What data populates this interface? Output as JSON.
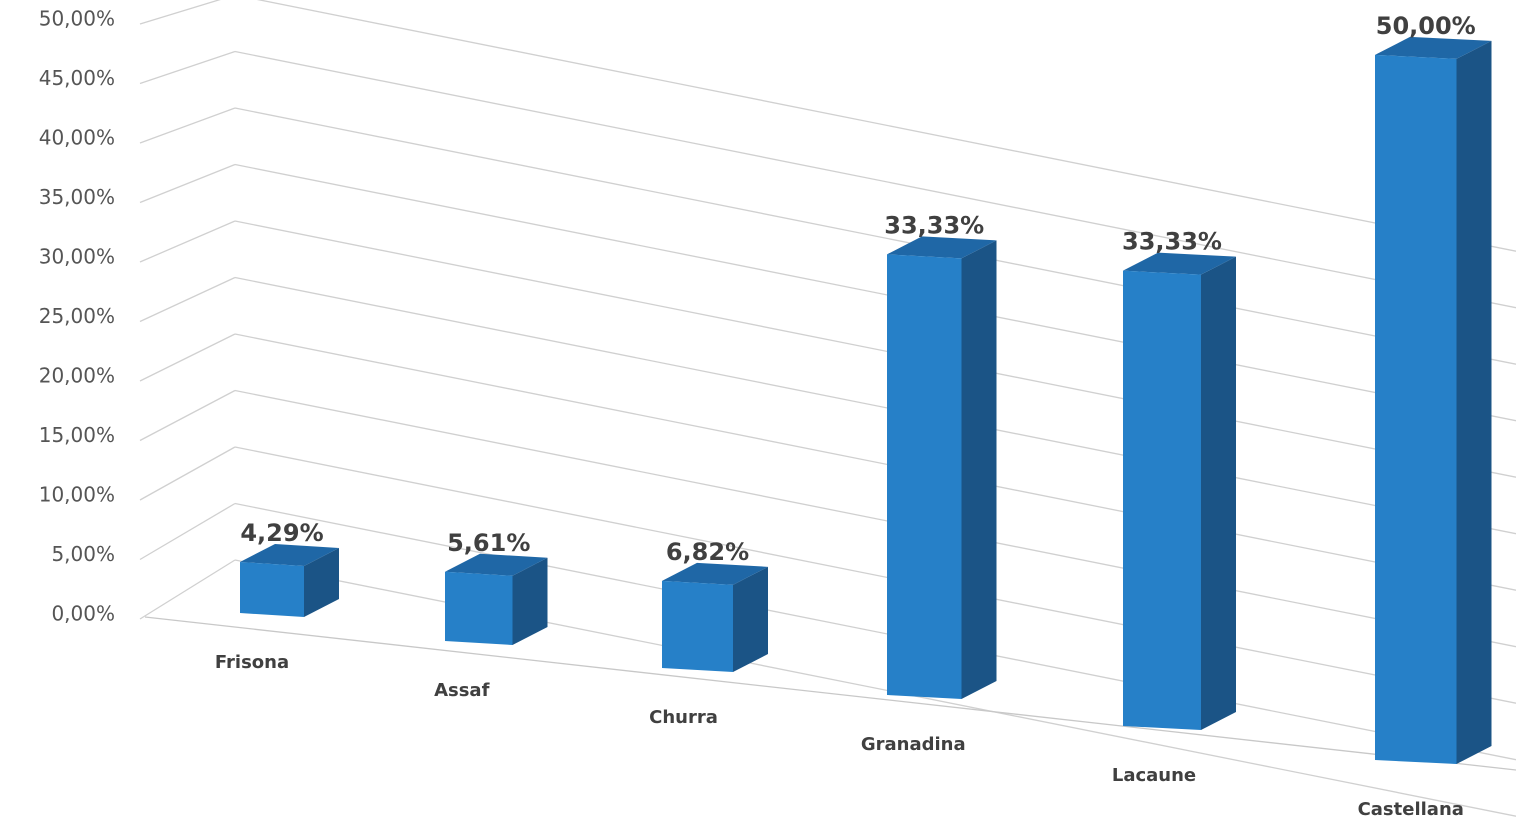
{
  "chart_data": {
    "type": "bar3d",
    "categories": [
      "Frisona",
      "Assaf",
      "Churra",
      "Granadina",
      "Lacaune",
      "Castellana"
    ],
    "values": [
      4.29,
      5.61,
      6.82,
      33.33,
      33.33,
      50
    ],
    "value_labels": [
      "4,29%",
      "5,61%",
      "6,82%",
      "33,33%",
      "33,33%",
      "50,00%"
    ],
    "color": "#2680c8",
    "ylim": [
      0,
      50
    ],
    "yticks": [
      {
        "value": 0,
        "label": "0,00%"
      },
      {
        "value": 5,
        "label": "5,00%"
      },
      {
        "value": 10,
        "label": "10,00%"
      },
      {
        "value": 15,
        "label": "15,00%"
      },
      {
        "value": 20,
        "label": "20,00%"
      },
      {
        "value": 25,
        "label": "25,00%"
      },
      {
        "value": 30,
        "label": "30,00%"
      },
      {
        "value": 35,
        "label": "35,00%"
      },
      {
        "value": 40,
        "label": "40,00%"
      },
      {
        "value": 45,
        "label": "45,00%"
      },
      {
        "value": 50,
        "label": "50,00%"
      }
    ],
    "grid": true
  }
}
